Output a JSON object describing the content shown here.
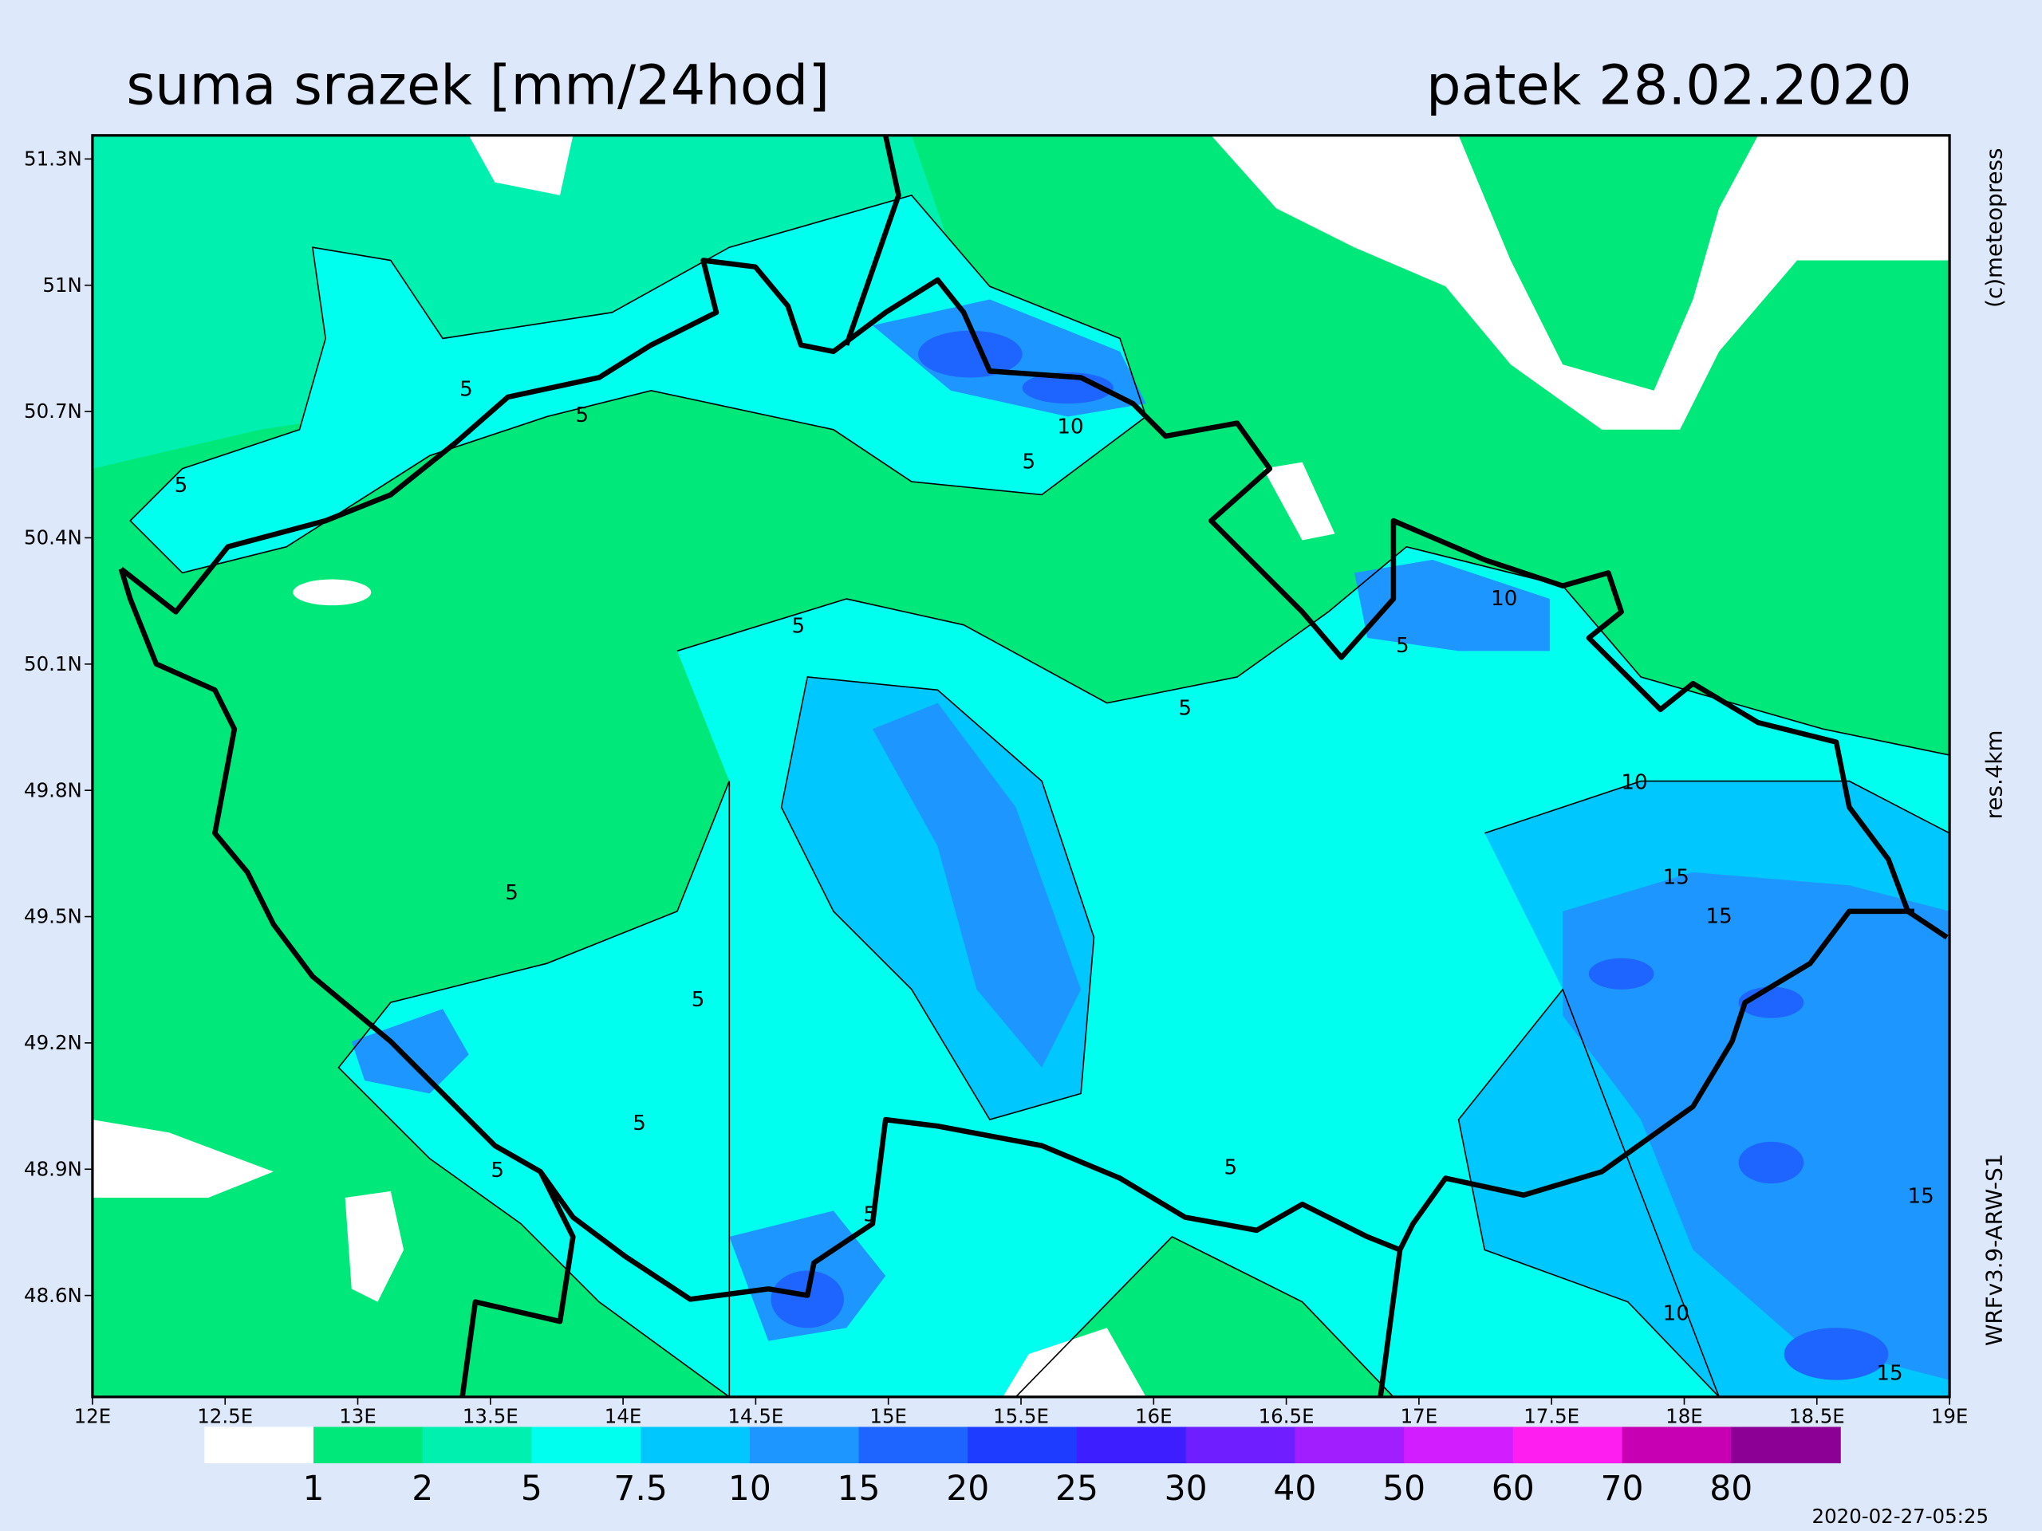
{
  "title": "suma srazek [mm/24hod]",
  "date": "patek 28.02.2020",
  "credit": "(c)meteopress",
  "resolution": "res.4km",
  "model": "WRFv3.9-ARW-S1",
  "timestamp": "2020-02-27-05:25",
  "map": {
    "xlim": [
      12,
      19
    ],
    "ylim": [
      48.359,
      51.356
    ],
    "xticks": [
      {
        "value": 12,
        "label": "12E"
      },
      {
        "value": 12.5,
        "label": "12.5E"
      },
      {
        "value": 13,
        "label": "13E"
      },
      {
        "value": 13.5,
        "label": "13.5E"
      },
      {
        "value": 14,
        "label": "14E"
      },
      {
        "value": 14.5,
        "label": "14.5E"
      },
      {
        "value": 15,
        "label": "15E"
      },
      {
        "value": 15.5,
        "label": "15.5E"
      },
      {
        "value": 16,
        "label": "16E"
      },
      {
        "value": 16.5,
        "label": "16.5E"
      },
      {
        "value": 17,
        "label": "17E"
      },
      {
        "value": 17.5,
        "label": "17.5E"
      },
      {
        "value": 18,
        "label": "18E"
      },
      {
        "value": 18.5,
        "label": "18.5E"
      },
      {
        "value": 19,
        "label": "19E"
      }
    ],
    "yticks": [
      {
        "value": 51.3,
        "label": "51.3N"
      },
      {
        "value": 51,
        "label": "51N"
      },
      {
        "value": 50.7,
        "label": "50.7N"
      },
      {
        "value": 50.4,
        "label": "50.4N"
      },
      {
        "value": 50.1,
        "label": "50.1N"
      },
      {
        "value": 49.8,
        "label": "49.8N"
      },
      {
        "value": 49.5,
        "label": "49.5N"
      },
      {
        "value": 49.2,
        "label": "49.2N"
      },
      {
        "value": 48.9,
        "label": "48.9N"
      },
      {
        "value": 48.6,
        "label": "48.6N"
      }
    ],
    "contour_labels": [
      5,
      5,
      5,
      10,
      5,
      10,
      5,
      5,
      5,
      10,
      15,
      15,
      5,
      5,
      5,
      5,
      5,
      15,
      10,
      15,
      5
    ]
  },
  "legend": {
    "levels": [
      1,
      2,
      5,
      7.5,
      10,
      15,
      20,
      25,
      30,
      40,
      50,
      60,
      70,
      80
    ],
    "colors": [
      "#ffffff",
      "#00e87a",
      "#00f0b0",
      "#00ffee",
      "#00c8ff",
      "#1e96ff",
      "#1e64ff",
      "#1e3cff",
      "#3c1eff",
      "#6e1eff",
      "#a01eff",
      "#d21eff",
      "#ff1ef0",
      "#c800b4",
      "#8c0096"
    ]
  }
}
